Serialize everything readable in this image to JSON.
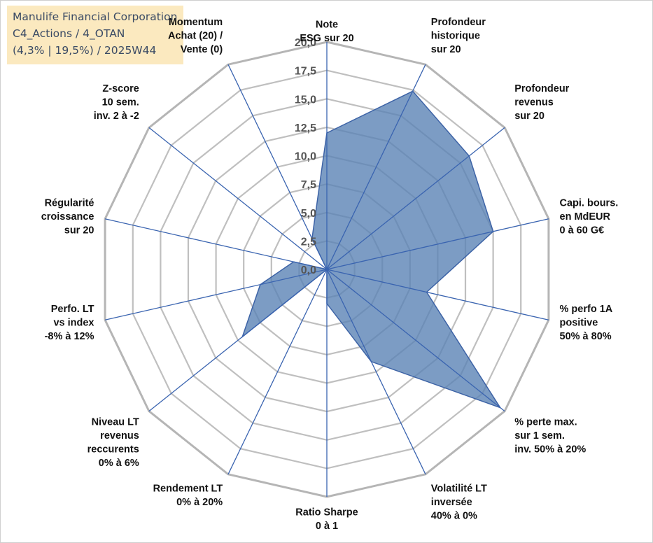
{
  "title": {
    "company": "Manulife Financial Corporation",
    "line2": "C4_Actions / 4_OTAN",
    "line3": "(4,3% | 19,5%) / 2025W44"
  },
  "chart_data": {
    "type": "radar",
    "title": "Manulife Financial Corporation",
    "rlim": [
      0,
      20
    ],
    "ticks": [
      "0,0",
      "2,5",
      "5,0",
      "7,5",
      "10,0",
      "12,5",
      "15,0",
      "17,5",
      "20,0"
    ],
    "axes": [
      "Note|ESG sur 20",
      "Profondeur|historique|sur 20",
      "Profondeur|revenus|sur 20",
      "Capi. bours.|en MdEUR|0 à 60 G€",
      "% perfo 1A|positive|50% à 80%",
      "% perte max.|sur 1 sem.|inv. 50% à 20%",
      "Volatilité LT|inversée|40% à 0%",
      "Ratio Sharpe|0 à 1",
      "Rendement LT|0% à 20%",
      "Niveau LT|revenus|reccurents|0% à 6%",
      "Perfo. LT|vs index|-8% à 12%",
      "Régularité|croissance|sur 20",
      "Z-score|10 sem.|inv. 2 à -2",
      "Momentum|Achat (20) /|Vente (0)"
    ],
    "series": [
      {
        "name": "Manulife Financial Corporation",
        "color": "#5b83b5",
        "values": [
          12.0,
          17.4,
          16.0,
          15.0,
          9.0,
          19.5,
          9.0,
          3.0,
          0.0,
          9.5,
          6.0,
          3.0,
          0.0,
          3.0
        ]
      }
    ],
    "grid": true
  },
  "colors": {
    "spoke": "#3a64b0",
    "grid": "#bfbfbf",
    "fill": "#5b83b5",
    "title_bg": "#fbe9bf"
  }
}
